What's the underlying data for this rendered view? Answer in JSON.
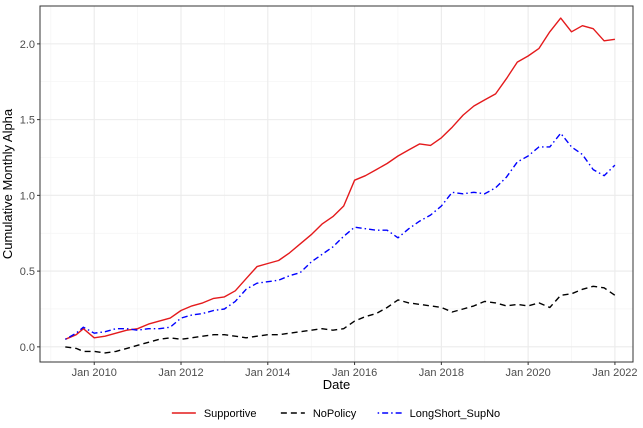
{
  "chart_data": {
    "type": "line",
    "title": "",
    "xlabel": "Date",
    "ylabel": "Cumulative Monthly Alpha",
    "x_ticks": [
      "Jan 2010",
      "Jan 2012",
      "Jan 2014",
      "Jan 2016",
      "Jan 2018",
      "Jan 2020",
      "Jan 2022"
    ],
    "y_ticks": [
      "0.0",
      "0.5",
      "1.0",
      "1.5",
      "2.0"
    ],
    "ylim": [
      -0.1,
      2.25
    ],
    "xlim": [
      "2008-10",
      "2022-06"
    ],
    "grid": true,
    "legend_position": "bottom",
    "series": [
      {
        "name": "Supportive",
        "color": "#e41a1c",
        "line_style": "solid",
        "points": [
          [
            "2009-05",
            0.05
          ],
          [
            "2009-08",
            0.08
          ],
          [
            "2009-10",
            0.12
          ],
          [
            "2010-01",
            0.06
          ],
          [
            "2010-04",
            0.07
          ],
          [
            "2010-07",
            0.09
          ],
          [
            "2010-10",
            0.11
          ],
          [
            "2011-01",
            0.12
          ],
          [
            "2011-04",
            0.15
          ],
          [
            "2011-07",
            0.17
          ],
          [
            "2011-10",
            0.19
          ],
          [
            "2012-01",
            0.24
          ],
          [
            "2012-04",
            0.27
          ],
          [
            "2012-07",
            0.29
          ],
          [
            "2012-10",
            0.32
          ],
          [
            "2013-01",
            0.33
          ],
          [
            "2013-04",
            0.37
          ],
          [
            "2013-07",
            0.45
          ],
          [
            "2013-10",
            0.53
          ],
          [
            "2014-01",
            0.55
          ],
          [
            "2014-04",
            0.57
          ],
          [
            "2014-07",
            0.62
          ],
          [
            "2014-10",
            0.68
          ],
          [
            "2015-01",
            0.74
          ],
          [
            "2015-04",
            0.81
          ],
          [
            "2015-07",
            0.86
          ],
          [
            "2015-10",
            0.93
          ],
          [
            "2016-01",
            1.1
          ],
          [
            "2016-04",
            1.13
          ],
          [
            "2016-07",
            1.17
          ],
          [
            "2016-10",
            1.21
          ],
          [
            "2017-01",
            1.26
          ],
          [
            "2017-04",
            1.3
          ],
          [
            "2017-07",
            1.34
          ],
          [
            "2017-10",
            1.33
          ],
          [
            "2018-01",
            1.38
          ],
          [
            "2018-04",
            1.45
          ],
          [
            "2018-07",
            1.53
          ],
          [
            "2018-10",
            1.59
          ],
          [
            "2019-01",
            1.63
          ],
          [
            "2019-04",
            1.67
          ],
          [
            "2019-07",
            1.77
          ],
          [
            "2019-10",
            1.88
          ],
          [
            "2020-01",
            1.92
          ],
          [
            "2020-04",
            1.97
          ],
          [
            "2020-07",
            2.08
          ],
          [
            "2020-10",
            2.17
          ],
          [
            "2021-01",
            2.08
          ],
          [
            "2021-04",
            2.12
          ],
          [
            "2021-07",
            2.1
          ],
          [
            "2021-10",
            2.02
          ],
          [
            "2022-01",
            2.03
          ]
        ]
      },
      {
        "name": "NoPolicy",
        "color": "#000000",
        "line_style": "dashed",
        "points": [
          [
            "2009-05",
            0.0
          ],
          [
            "2009-08",
            -0.01
          ],
          [
            "2009-10",
            -0.03
          ],
          [
            "2010-01",
            -0.03
          ],
          [
            "2010-04",
            -0.04
          ],
          [
            "2010-07",
            -0.03
          ],
          [
            "2010-10",
            -0.01
          ],
          [
            "2011-01",
            0.01
          ],
          [
            "2011-04",
            0.03
          ],
          [
            "2011-07",
            0.05
          ],
          [
            "2011-10",
            0.06
          ],
          [
            "2012-01",
            0.05
          ],
          [
            "2012-04",
            0.06
          ],
          [
            "2012-07",
            0.07
          ],
          [
            "2012-10",
            0.08
          ],
          [
            "2013-01",
            0.08
          ],
          [
            "2013-04",
            0.07
          ],
          [
            "2013-07",
            0.06
          ],
          [
            "2013-10",
            0.07
          ],
          [
            "2014-01",
            0.08
          ],
          [
            "2014-04",
            0.08
          ],
          [
            "2014-07",
            0.09
          ],
          [
            "2014-10",
            0.1
          ],
          [
            "2015-01",
            0.11
          ],
          [
            "2015-04",
            0.12
          ],
          [
            "2015-07",
            0.11
          ],
          [
            "2015-10",
            0.12
          ],
          [
            "2016-01",
            0.17
          ],
          [
            "2016-04",
            0.2
          ],
          [
            "2016-07",
            0.22
          ],
          [
            "2016-10",
            0.26
          ],
          [
            "2017-01",
            0.31
          ],
          [
            "2017-04",
            0.29
          ],
          [
            "2017-07",
            0.28
          ],
          [
            "2017-10",
            0.27
          ],
          [
            "2018-01",
            0.26
          ],
          [
            "2018-04",
            0.23
          ],
          [
            "2018-07",
            0.25
          ],
          [
            "2018-10",
            0.27
          ],
          [
            "2019-01",
            0.3
          ],
          [
            "2019-04",
            0.29
          ],
          [
            "2019-07",
            0.27
          ],
          [
            "2019-10",
            0.28
          ],
          [
            "2020-01",
            0.27
          ],
          [
            "2020-04",
            0.29
          ],
          [
            "2020-07",
            0.26
          ],
          [
            "2020-10",
            0.34
          ],
          [
            "2021-01",
            0.35
          ],
          [
            "2021-04",
            0.38
          ],
          [
            "2021-07",
            0.4
          ],
          [
            "2021-10",
            0.39
          ],
          [
            "2022-01",
            0.34
          ]
        ]
      },
      {
        "name": "LongShort_SupNo",
        "color": "#0000ff",
        "line_style": "dotdash",
        "points": [
          [
            "2009-05",
            0.05
          ],
          [
            "2009-08",
            0.09
          ],
          [
            "2009-10",
            0.13
          ],
          [
            "2010-01",
            0.09
          ],
          [
            "2010-04",
            0.1
          ],
          [
            "2010-07",
            0.12
          ],
          [
            "2010-10",
            0.12
          ],
          [
            "2011-01",
            0.11
          ],
          [
            "2011-04",
            0.12
          ],
          [
            "2011-07",
            0.12
          ],
          [
            "2011-10",
            0.13
          ],
          [
            "2012-01",
            0.19
          ],
          [
            "2012-04",
            0.21
          ],
          [
            "2012-07",
            0.22
          ],
          [
            "2012-10",
            0.24
          ],
          [
            "2013-01",
            0.25
          ],
          [
            "2013-04",
            0.3
          ],
          [
            "2013-07",
            0.38
          ],
          [
            "2013-10",
            0.42
          ],
          [
            "2014-01",
            0.43
          ],
          [
            "2014-04",
            0.44
          ],
          [
            "2014-07",
            0.47
          ],
          [
            "2014-10",
            0.49
          ],
          [
            "2015-01",
            0.56
          ],
          [
            "2015-04",
            0.61
          ],
          [
            "2015-07",
            0.66
          ],
          [
            "2015-10",
            0.73
          ],
          [
            "2016-01",
            0.79
          ],
          [
            "2016-04",
            0.78
          ],
          [
            "2016-07",
            0.77
          ],
          [
            "2016-10",
            0.77
          ],
          [
            "2017-01",
            0.72
          ],
          [
            "2017-04",
            0.78
          ],
          [
            "2017-07",
            0.83
          ],
          [
            "2017-10",
            0.87
          ],
          [
            "2018-01",
            0.93
          ],
          [
            "2018-04",
            1.02
          ],
          [
            "2018-07",
            1.01
          ],
          [
            "2018-10",
            1.02
          ],
          [
            "2019-01",
            1.01
          ],
          [
            "2019-04",
            1.05
          ],
          [
            "2019-07",
            1.12
          ],
          [
            "2019-10",
            1.22
          ],
          [
            "2020-01",
            1.26
          ],
          [
            "2020-04",
            1.32
          ],
          [
            "2020-07",
            1.32
          ],
          [
            "2020-10",
            1.41
          ],
          [
            "2021-01",
            1.32
          ],
          [
            "2021-04",
            1.27
          ],
          [
            "2021-07",
            1.17
          ],
          [
            "2021-10",
            1.13
          ],
          [
            "2022-01",
            1.2
          ]
        ]
      }
    ]
  }
}
